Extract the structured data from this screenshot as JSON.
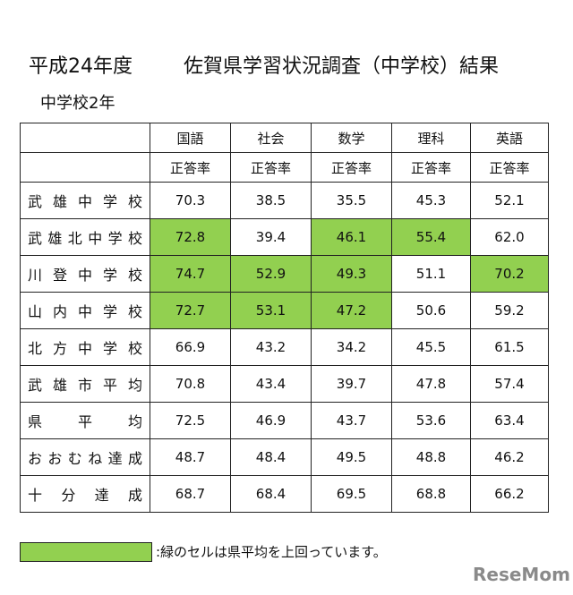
{
  "header": {
    "title": "平成24年度",
    "subtitle": "佐賀県学習状況調査（中学校）結果",
    "grade": "中学校2年"
  },
  "table": {
    "highlight_color": "#92d050",
    "columns": [
      "国語",
      "社会",
      "数学",
      "理科",
      "英語"
    ],
    "subheader": [
      "正答率",
      "正答率",
      "正答率",
      "正答率",
      "正答率"
    ],
    "rows": [
      {
        "name": "武雄中学校",
        "values": [
          "70.3",
          "38.5",
          "35.5",
          "45.3",
          "52.1"
        ],
        "highlight": [
          false,
          false,
          false,
          false,
          false
        ]
      },
      {
        "name": "武雄北中学校",
        "values": [
          "72.8",
          "39.4",
          "46.1",
          "55.4",
          "62.0"
        ],
        "highlight": [
          true,
          false,
          true,
          true,
          false
        ]
      },
      {
        "name": "川登中学校",
        "values": [
          "74.7",
          "52.9",
          "49.3",
          "51.1",
          "70.2"
        ],
        "highlight": [
          true,
          true,
          true,
          false,
          true
        ]
      },
      {
        "name": "山内中学校",
        "values": [
          "72.7",
          "53.1",
          "47.2",
          "50.6",
          "59.2"
        ],
        "highlight": [
          true,
          true,
          true,
          false,
          false
        ]
      },
      {
        "name": "北方中学校",
        "values": [
          "66.9",
          "43.2",
          "34.2",
          "45.5",
          "61.5"
        ],
        "highlight": [
          false,
          false,
          false,
          false,
          false
        ]
      },
      {
        "name": "武雄市平均",
        "values": [
          "70.8",
          "43.4",
          "39.7",
          "47.8",
          "57.4"
        ],
        "highlight": [
          false,
          false,
          false,
          false,
          false
        ]
      },
      {
        "name": "県平均",
        "values": [
          "72.5",
          "46.9",
          "43.7",
          "53.6",
          "63.4"
        ],
        "highlight": [
          false,
          false,
          false,
          false,
          false
        ]
      },
      {
        "name": "おおむね達成",
        "values": [
          "48.7",
          "48.4",
          "49.5",
          "48.8",
          "46.2"
        ],
        "highlight": [
          false,
          false,
          false,
          false,
          false
        ]
      },
      {
        "name": "十分達成",
        "values": [
          "68.7",
          "68.4",
          "69.5",
          "68.8",
          "66.2"
        ],
        "highlight": [
          false,
          false,
          false,
          false,
          false
        ]
      }
    ]
  },
  "legend": {
    "text": ":緑のセルは県平均を上回っています。"
  },
  "logo": "ReseMom"
}
